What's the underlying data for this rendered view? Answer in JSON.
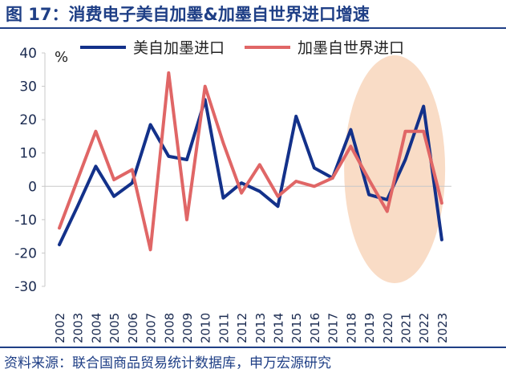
{
  "figure_title": "图 17：消费电子美自加墨&加墨自世界进口增速",
  "source": "资料来源：联合国商品贸易统计数据库，申万宏源研究",
  "colors": {
    "series1": "#13318a",
    "series2": "#e06666",
    "highlight": "#f9dcc6",
    "title": "#1f3f86",
    "axis": "#c8c8c8",
    "text": "#1a2a50"
  },
  "chart_data": {
    "type": "line",
    "unit_label": "%",
    "x": [
      "2002",
      "2003",
      "2004",
      "2005",
      "2006",
      "2007",
      "2008",
      "2009",
      "2010",
      "2011",
      "2012",
      "2013",
      "2014",
      "2015",
      "2016",
      "2017",
      "2018",
      "2019",
      "2020",
      "2021",
      "2022",
      "2023"
    ],
    "series": [
      {
        "name": "美自加墨进口",
        "values": [
          -17.5,
          -6,
          6,
          -3,
          1,
          18.5,
          9,
          8,
          26,
          -3.5,
          1,
          -1.5,
          -6,
          21,
          5.5,
          2.5,
          17,
          -2.5,
          -4,
          8,
          24,
          -16
        ]
      },
      {
        "name": "加墨自世界进口",
        "values": [
          -12.5,
          2,
          16.5,
          2,
          5,
          -19,
          34,
          -10,
          30,
          13,
          -2,
          6.5,
          -3,
          1.5,
          0,
          2.5,
          12,
          2,
          -7.5,
          16.5,
          16.5,
          -5
        ]
      }
    ],
    "ylim": [
      -30,
      40
    ],
    "yticks": [
      40,
      30,
      20,
      10,
      0,
      -10,
      -20,
      -30
    ],
    "legend_position": "top",
    "highlight_region": "2018–2023"
  }
}
